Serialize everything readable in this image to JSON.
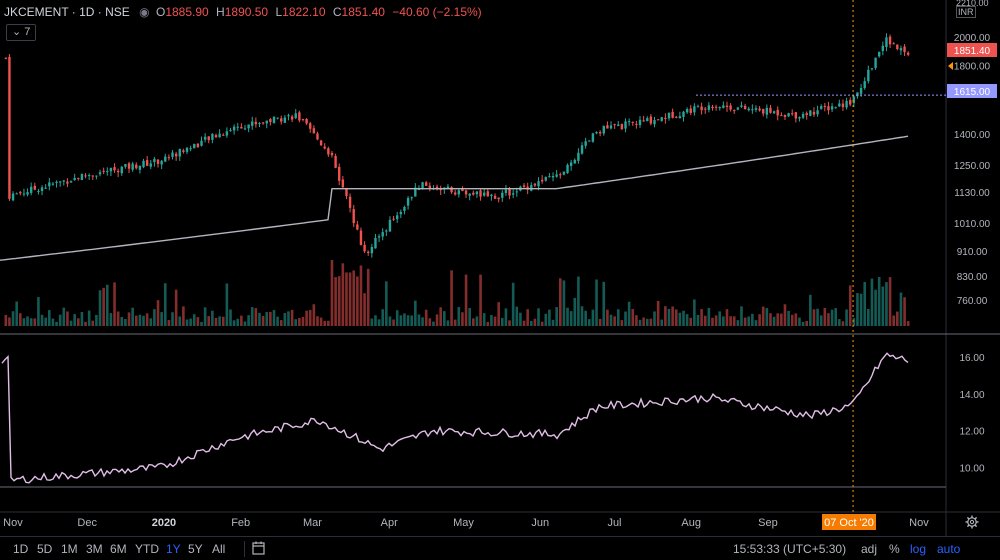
{
  "header": {
    "symbol": "JKCEMENT · 1D · NSE",
    "open_label": "O",
    "open": "1885.90",
    "high_label": "H",
    "high": "1890.50",
    "low_label": "L",
    "low": "1822.10",
    "close_label": "C",
    "close": "1851.40",
    "change": "−40.60 (−2.15%)"
  },
  "indicator_toggle": "7",
  "price_axis": {
    "currency": "INR",
    "top_value": "2210.00",
    "ticks": [
      "2000.00",
      "1800.00",
      "1615.00",
      "1400.00",
      "1250.00",
      "1130.00",
      "1010.00",
      "910.00",
      "830.00",
      "760.00"
    ],
    "last_price_label": "1851.40",
    "level_label": "1615.00"
  },
  "indicator_axis": {
    "ticks": [
      "16.00",
      "14.00",
      "12.00",
      "10.00"
    ]
  },
  "time_axis": {
    "ticks": [
      "Nov",
      "Dec",
      "2020",
      "Feb",
      "Mar",
      "Apr",
      "May",
      "Jun",
      "Jul",
      "Aug",
      "Sep",
      "Nov"
    ],
    "crosshair_label": "07 Oct '20"
  },
  "bottom_bar": {
    "ranges": [
      "1D",
      "5D",
      "1M",
      "3M",
      "6M",
      "YTD",
      "1Y",
      "5Y",
      "All"
    ],
    "active_range": "1Y",
    "clock": "15:53:33 (UTC+5:30)",
    "options": [
      "adj",
      "%",
      "log",
      "auto"
    ]
  },
  "colors": {
    "up": "#26a69a",
    "down": "#ef5350",
    "ma": "#b2b5be",
    "indicator": "#e1bee7",
    "crosshair": "#ff9800",
    "level": "#9598ff"
  },
  "chart_data": {
    "type": "candlestick",
    "title": "JKCEMENT · 1D · NSE",
    "scale": "log",
    "ylim": [
      700,
      2210
    ],
    "x_range": [
      "2019-11",
      "2020-11"
    ],
    "key_points": [
      {
        "x": "2019-11-01",
        "close": 1115
      },
      {
        "x": "2019-12-01",
        "close": 1200
      },
      {
        "x": "2020-01-01",
        "close": 1270
      },
      {
        "x": "2020-02-01",
        "close": 1440
      },
      {
        "x": "2020-02-25",
        "close": 1500
      },
      {
        "x": "2020-03-10",
        "close": 1300
      },
      {
        "x": "2020-03-24",
        "close": 900
      },
      {
        "x": "2020-04-15",
        "close": 1160
      },
      {
        "x": "2020-05-15",
        "close": 1110
      },
      {
        "x": "2020-06-10",
        "close": 1200
      },
      {
        "x": "2020-06-26",
        "close": 1420
      },
      {
        "x": "2020-07-20",
        "close": 1480
      },
      {
        "x": "2020-08-10",
        "close": 1560
      },
      {
        "x": "2020-09-15",
        "close": 1500
      },
      {
        "x": "2020-10-07",
        "close": 1580
      },
      {
        "x": "2020-10-20",
        "close": 1980
      },
      {
        "x": "2020-10-30",
        "close": 1851.4
      }
    ],
    "moving_average": {
      "start": 880,
      "end": 1390
    },
    "horizontal_level": 1615,
    "crosshair_date": "07 Oct '20",
    "indicator": {
      "ylim": [
        9,
        16.5
      ],
      "key_points": [
        {
          "x": "2019-11-01",
          "y": 9.3
        },
        {
          "x": "2020-01-01",
          "y": 10.0
        },
        {
          "x": "2020-02-01",
          "y": 11.6
        },
        {
          "x": "2020-03-05",
          "y": 12.6
        },
        {
          "x": "2020-03-30",
          "y": 11.0
        },
        {
          "x": "2020-04-20",
          "y": 12.0
        },
        {
          "x": "2020-06-10",
          "y": 11.8
        },
        {
          "x": "2020-06-26",
          "y": 13.3
        },
        {
          "x": "2020-08-10",
          "y": 13.8
        },
        {
          "x": "2020-09-20",
          "y": 12.8
        },
        {
          "x": "2020-10-07",
          "y": 13.4
        },
        {
          "x": "2020-10-20",
          "y": 16.1
        },
        {
          "x": "2020-10-30",
          "y": 15.8
        }
      ]
    }
  }
}
